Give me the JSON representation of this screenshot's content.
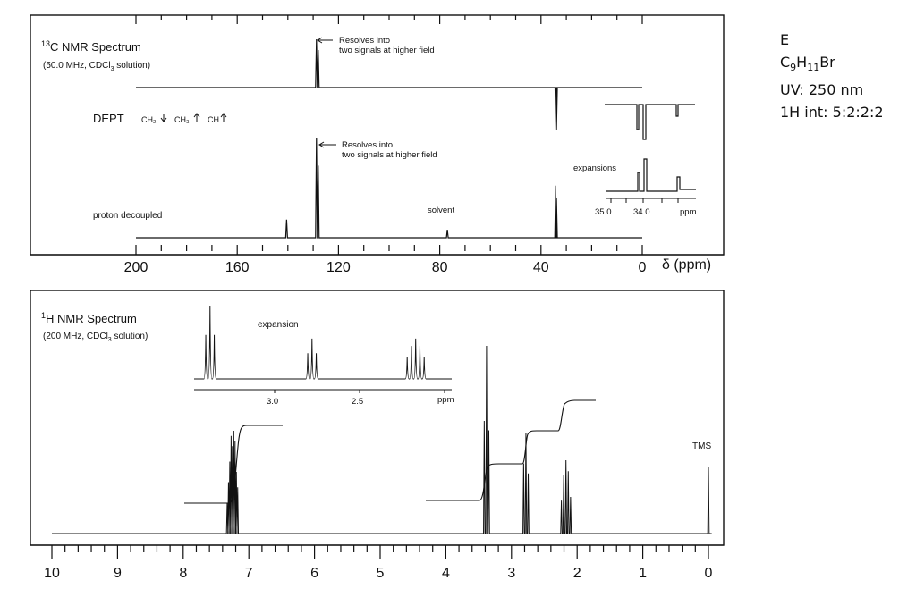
{
  "compound": {
    "label": "E",
    "formula_parts": [
      "C",
      "9",
      "H",
      "11",
      "Br"
    ],
    "uv": "UV: 250 nm",
    "h_integration": "1H int: 5:2:2:2"
  },
  "c13": {
    "title_sup": "13",
    "title_main": "C NMR Spectrum",
    "conditions_a": "(50.0 MHz, CDCl",
    "conditions_sub": "3",
    "conditions_b": " solution)",
    "dept_label": "DEPT",
    "dept_ch2": "CH₂",
    "dept_ch3": "CH₃",
    "dept_ch": "CH",
    "annotation_line1": "Resolves into",
    "annotation_line2": "two signals at higher field",
    "proton_decoupled": "proton decoupled",
    "solvent": "solvent",
    "expansions": "expansions",
    "expansion_ticks": [
      "35.0",
      "34.0",
      "ppm"
    ],
    "axis_ticks": [
      "200",
      "160",
      "120",
      "80",
      "40",
      "0"
    ],
    "axis_unit": "δ (ppm)"
  },
  "h1": {
    "title_sup": "1",
    "title_main": "H NMR Spectrum",
    "conditions_a": "(200 MHz, CDCl",
    "conditions_sub": "3",
    "conditions_b": " solution)",
    "expansion": "expansion",
    "expansion_ticks": [
      "3.0",
      "2.5",
      "ppm"
    ],
    "tms": "TMS",
    "axis_ticks": [
      "10",
      "9",
      "8",
      "7",
      "6",
      "5",
      "4",
      "3",
      "2",
      "1",
      "0"
    ]
  },
  "chart_data": [
    {
      "type": "line",
      "title": "13C NMR Spectrum",
      "xlabel": "δ (ppm)",
      "xlim": [
        200,
        0
      ],
      "series": [
        {
          "name": "DEPT",
          "peaks": [
            {
              "x": 128.7,
              "y": 0.9,
              "phase": "up"
            },
            {
              "x": 128.0,
              "y": 0.7,
              "phase": "up"
            },
            {
              "x": 34.1,
              "y": -0.8,
              "phase": "down"
            },
            {
              "x": 33.9,
              "y": -0.8,
              "phase": "down"
            }
          ]
        },
        {
          "name": "proton decoupled",
          "peaks": [
            {
              "x": 140.5,
              "y": 0.18
            },
            {
              "x": 128.7,
              "y": 1.0
            },
            {
              "x": 128.0,
              "y": 0.72
            },
            {
              "x": 126.5,
              "y": 0.0
            },
            {
              "x": 77.0,
              "y": 0.08
            },
            {
              "x": 34.2,
              "y": 0.52
            },
            {
              "x": 33.9,
              "y": 0.4
            }
          ]
        }
      ]
    },
    {
      "type": "line",
      "title": "1H NMR Spectrum",
      "xlim": [
        10,
        0
      ],
      "series": [
        {
          "name": "spectrum",
          "peaks": [
            {
              "x": 7.25,
              "y": 0.5
            },
            {
              "x": 3.38,
              "y": 0.95
            },
            {
              "x": 2.78,
              "y": 0.5
            },
            {
              "x": 2.17,
              "y": 0.35
            },
            {
              "x": 0.0,
              "y": 0.33
            }
          ]
        }
      ],
      "integration_ratio": [
        5,
        2,
        2,
        2
      ]
    }
  ]
}
